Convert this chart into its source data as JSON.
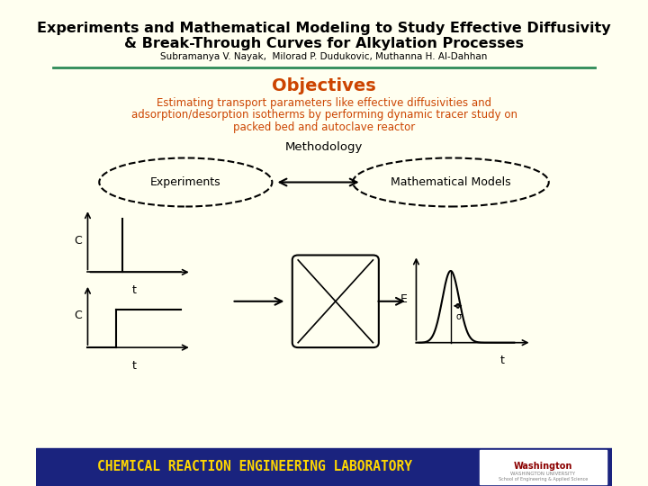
{
  "title_line1": "Experiments and Mathematical Modeling to Study Effective Diffusivity",
  "title_line2": "& Break-Through Curves for Alkylation Processes",
  "authors": "Subramanya V. Nayak,  Milorad P. Dudukovic, Muthanna H. Al-Dahhan",
  "objectives_title": "Objectives",
  "objectives_text1": "Estimating transport parameters like effective diffusivities and",
  "objectives_text2": "adsorption/desorption isotherms by performing dynamic tracer study on",
  "objectives_text3": "packed bed and autoclave reactor",
  "methodology_label": "Methodology",
  "experiments_label": "Experiments",
  "math_models_label": "Mathematical Models",
  "footer_text": "CHEMICAL REACTION ENGINEERING LABORATORY",
  "washington_text": "Washington",
  "bg_color": "#FFFFF0",
  "title_bg": "#FFFFF0",
  "footer_bg": "#1a237e",
  "footer_text_color": "#FFD700",
  "title_color": "#000000",
  "objectives_title_color": "#CC4400",
  "objectives_text_color": "#CC4400",
  "separator_color": "#2e8b57",
  "methodology_color": "#000000"
}
